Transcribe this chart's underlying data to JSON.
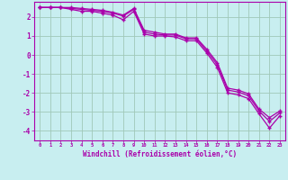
{
  "x_labels": [
    0,
    1,
    2,
    3,
    4,
    5,
    6,
    7,
    8,
    9,
    10,
    11,
    12,
    13,
    14,
    15,
    16,
    17,
    18,
    19,
    20,
    21,
    22,
    23
  ],
  "line1_y": [
    2.5,
    2.5,
    2.5,
    2.4,
    2.3,
    2.3,
    2.2,
    2.1,
    1.85,
    2.3,
    1.1,
    1.0,
    1.0,
    0.95,
    0.75,
    0.75,
    0.1,
    -0.65,
    -2.0,
    -2.1,
    -2.3,
    -3.1,
    -3.85,
    -3.2
  ],
  "line2_y": [
    2.5,
    2.5,
    2.5,
    2.45,
    2.4,
    2.35,
    2.3,
    2.2,
    2.05,
    2.4,
    1.2,
    1.1,
    1.05,
    1.05,
    0.85,
    0.85,
    0.2,
    -0.5,
    -1.85,
    -1.95,
    -2.15,
    -2.95,
    -3.5,
    -3.05
  ],
  "line3_y": [
    2.5,
    2.5,
    2.5,
    2.5,
    2.45,
    2.4,
    2.35,
    2.25,
    2.1,
    2.45,
    1.3,
    1.2,
    1.1,
    1.1,
    0.9,
    0.9,
    0.3,
    -0.4,
    -1.75,
    -1.85,
    -2.05,
    -2.85,
    -3.3,
    -2.95
  ],
  "bg_color": "#c8eef0",
  "line_color": "#aa00aa",
  "grid_color": "#a0c8b8",
  "xlabel": "Windchill (Refroidissement éolien,°C)",
  "tick_color": "#aa00aa",
  "ylim": [
    -4.5,
    2.8
  ],
  "yticks": [
    2,
    1,
    0,
    -1,
    -2,
    -3,
    -4
  ],
  "ytick_labels": [
    "2",
    "1",
    "0",
    "-1",
    "-2",
    "-3",
    "-4"
  ],
  "xtick_labels": [
    "0",
    "1",
    "2",
    "3",
    "4",
    "5",
    "6",
    "7",
    "8",
    "9",
    "10",
    "11",
    "12",
    "13",
    "14",
    "15",
    "16",
    "17",
    "18",
    "19",
    "20",
    "21",
    "22",
    "23"
  ],
  "xlim": [
    -0.5,
    23.5
  ]
}
